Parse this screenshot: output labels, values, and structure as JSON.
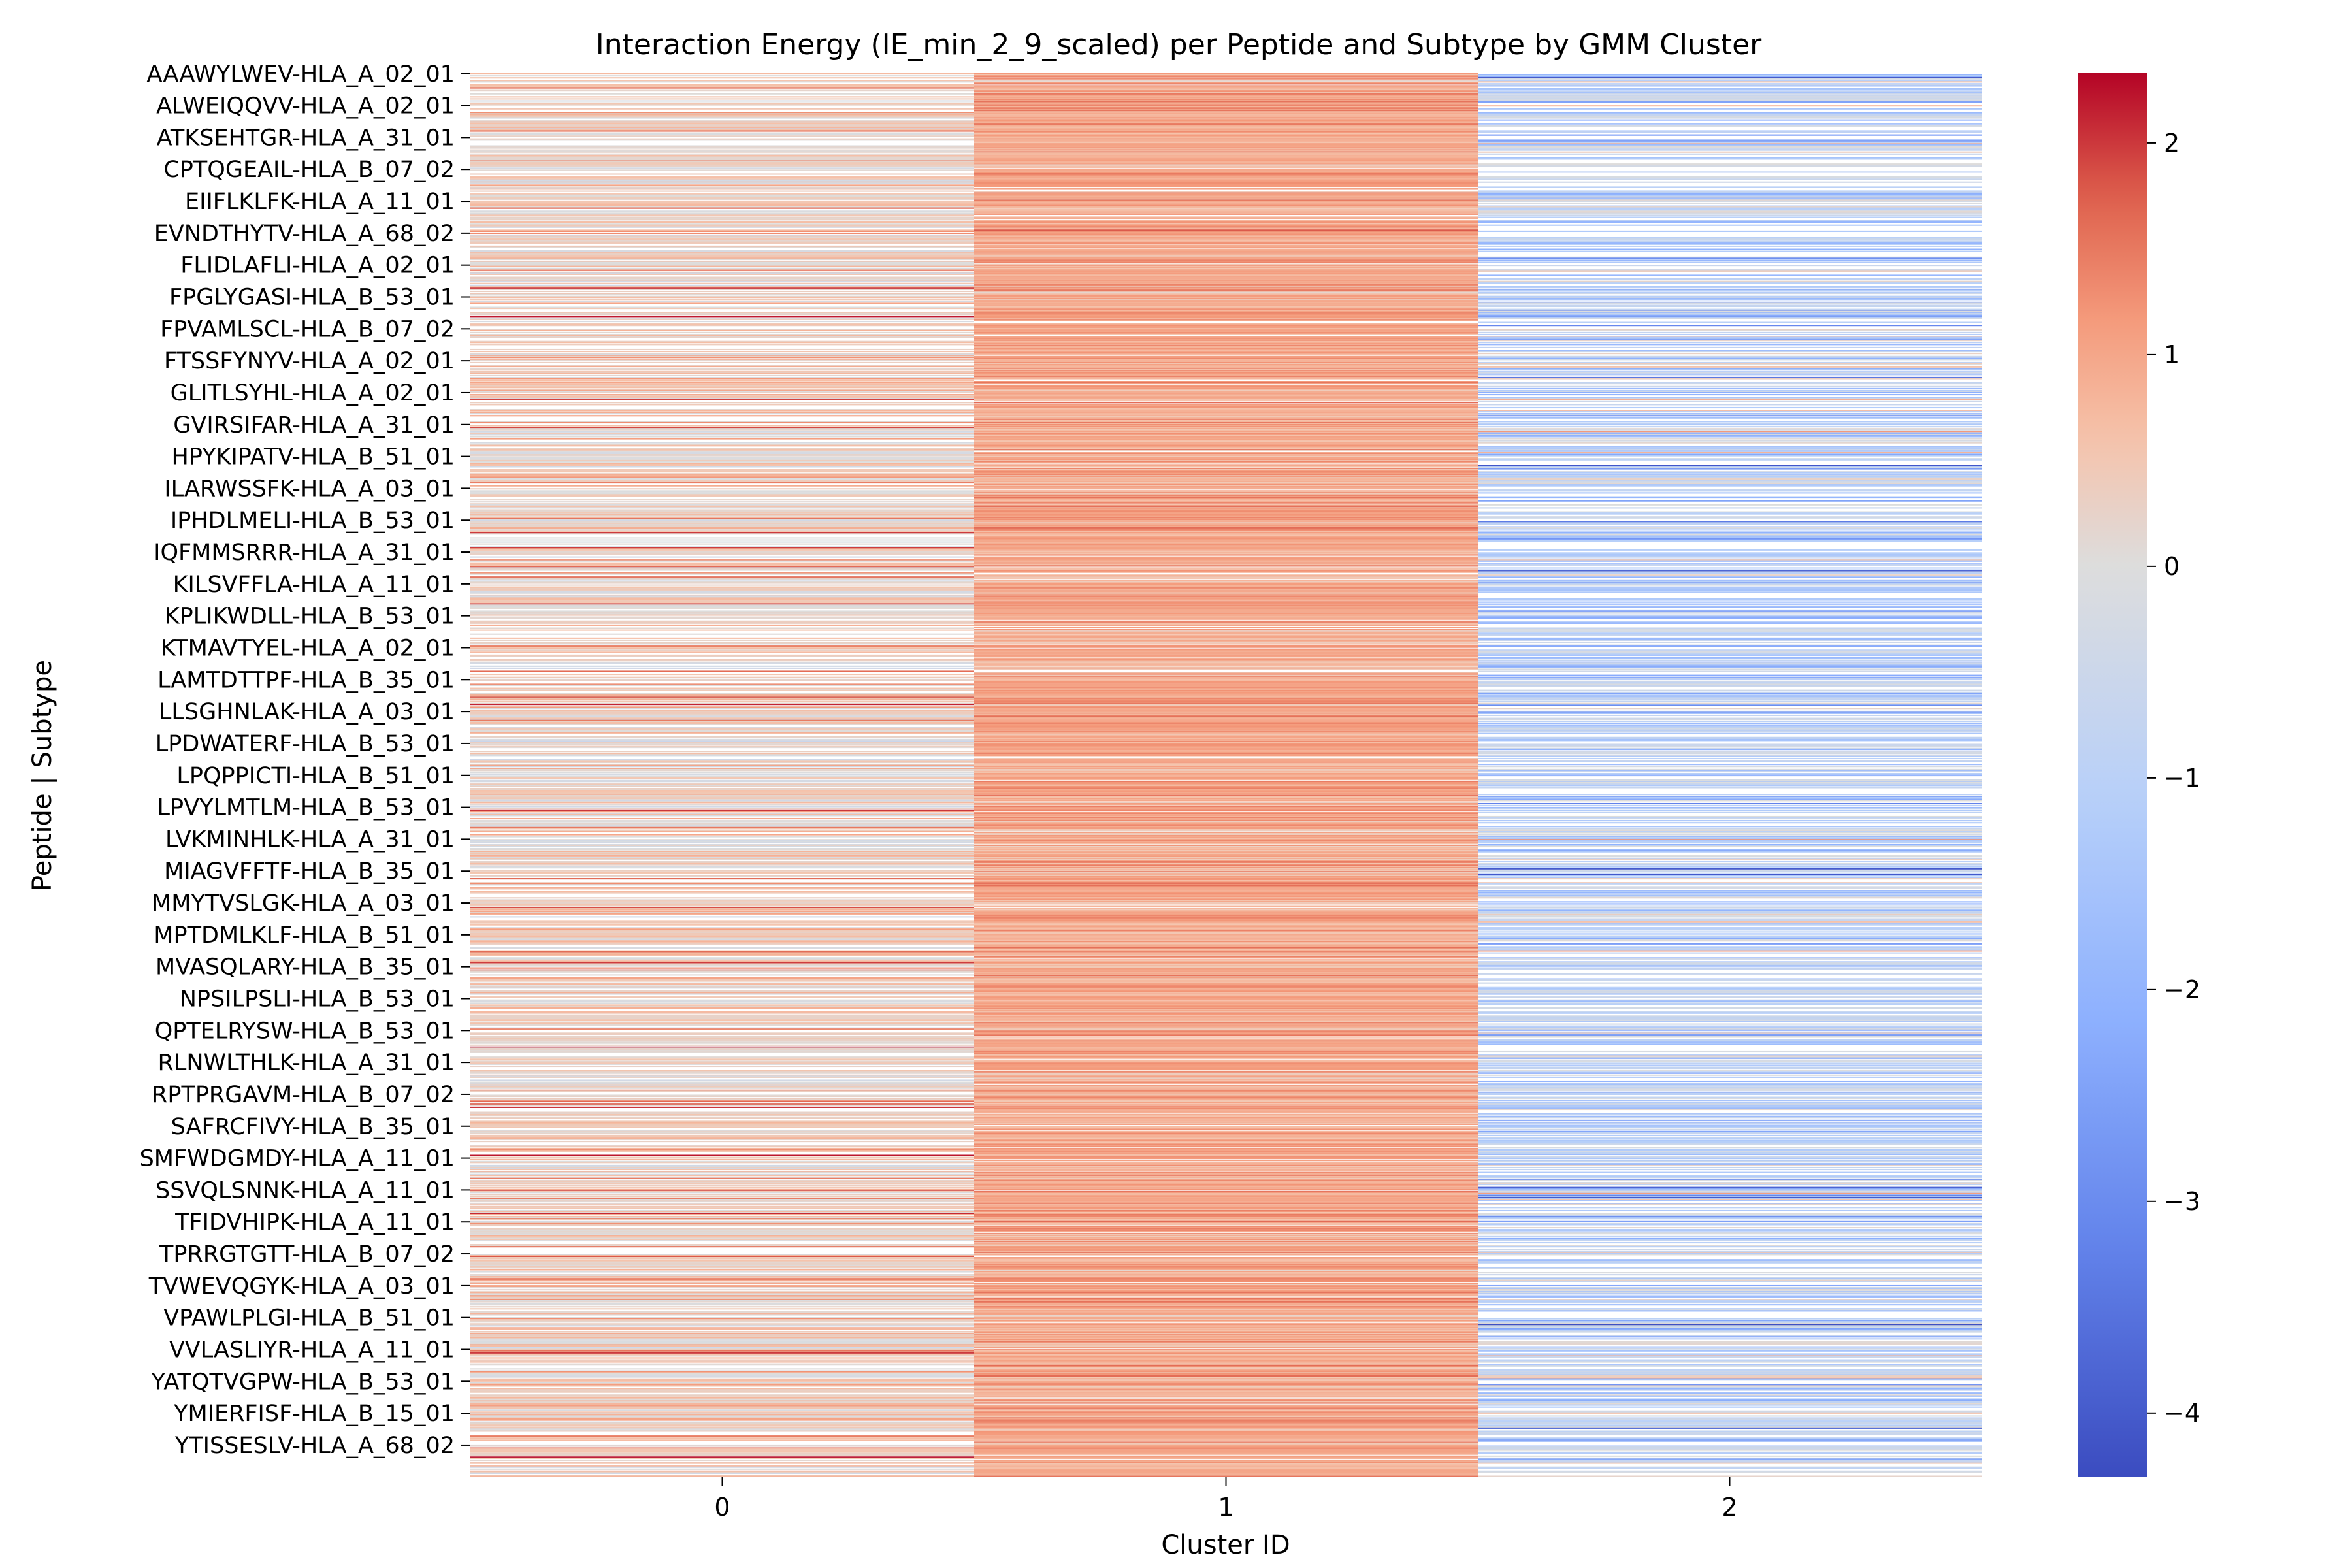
{
  "chart_data": {
    "type": "heatmap",
    "title": "Interaction Energy (IE_min_2_9_scaled) per Peptide and Subtype by GMM Cluster",
    "xlabel": "Cluster ID",
    "ylabel": "Peptide | Subtype",
    "x_categories": [
      "0",
      "1",
      "2"
    ],
    "y_tick_labels": [
      "AAAWYLWEV-HLA_A_02_01",
      "ALWEIQQVV-HLA_A_02_01",
      "ATKSEHTGR-HLA_A_31_01",
      "CPTQGEAIL-HLA_B_07_02",
      "EIIFLKLFK-HLA_A_11_01",
      "EVNDTHYTV-HLA_A_68_02",
      "FLIDLAFLI-HLA_A_02_01",
      "FPGLYGASI-HLA_B_53_01",
      "FPVAMLSCL-HLA_B_07_02",
      "FTSSFYNYV-HLA_A_02_01",
      "GLITLSYHL-HLA_A_02_01",
      "GVIRSIFAR-HLA_A_31_01",
      "HPYKIPATV-HLA_B_51_01",
      "ILARWSSFK-HLA_A_03_01",
      "IPHDLMELI-HLA_B_53_01",
      "IQFMMSRRR-HLA_A_31_01",
      "KILSVFFLA-HLA_A_11_01",
      "KPLIKWDLL-HLA_B_53_01",
      "KTMAVTYEL-HLA_A_02_01",
      "LAMTDTTPF-HLA_B_35_01",
      "LLSGHNLAK-HLA_A_03_01",
      "LPDWATERF-HLA_B_53_01",
      "LPQPPICTI-HLA_B_51_01",
      "LPVYLMTLM-HLA_B_53_01",
      "LVKMINHLK-HLA_A_31_01",
      "MIAGVFFTF-HLA_B_35_01",
      "MMYTVSLGK-HLA_A_03_01",
      "MPTDMLKLF-HLA_B_51_01",
      "MVASQLARY-HLA_B_35_01",
      "NPSILPSLI-HLA_B_53_01",
      "QPTELRYSW-HLA_B_53_01",
      "RLNWLTHLK-HLA_A_31_01",
      "RPTPRGAVM-HLA_B_07_02",
      "SAFRCFIVY-HLA_B_35_01",
      "SMFWDGMDY-HLA_A_11_01",
      "SSVQLSNNK-HLA_A_11_01",
      "TFIDVHIPK-HLA_A_11_01",
      "TPRRGTGTT-HLA_B_07_02",
      "TVWEVQGYK-HLA_A_03_01",
      "VPAWLPLGI-HLA_B_51_01",
      "VVLASLIYR-HLA_A_11_01",
      "YATQTVGPW-HLA_B_53_01",
      "YMIERFISF-HLA_B_15_01",
      "YTISSESLV-HLA_A_68_02"
    ],
    "colorbar": {
      "colormap": "coolwarm",
      "vmin": -4.3,
      "vmax": 2.33,
      "ticks": [
        2,
        1,
        0,
        -1,
        -2,
        -3,
        -4
      ],
      "tick_labels": [
        "2",
        "1",
        "0",
        "−1",
        "−2",
        "−3",
        "−4"
      ]
    },
    "cluster_profiles": [
      {
        "cluster": "0",
        "mean": 0.3,
        "spread": 0.35,
        "empty_fraction": 0.35
      },
      {
        "cluster": "1",
        "mean": 0.95,
        "spread": 0.3,
        "empty_fraction": 0.06
      },
      {
        "cluster": "2",
        "mean": -0.8,
        "spread": 0.7,
        "empty_fraction": 0.42
      }
    ],
    "grid": false,
    "legend": "colorbar-right"
  }
}
